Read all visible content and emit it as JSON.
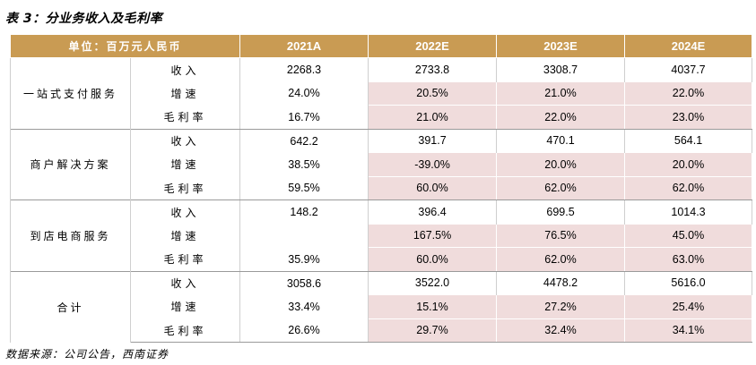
{
  "title": "表 3：分业务收入及毛利率",
  "header": {
    "unit": "单位：百万元人民币",
    "years": [
      "2021A",
      "2022E",
      "2023E",
      "2024E"
    ]
  },
  "segments": [
    {
      "name": "一站式支付服务",
      "rows": [
        {
          "metric": "收入",
          "values": [
            "2268.3",
            "2733.8",
            "3308.7",
            "4037.7"
          ]
        },
        {
          "metric": "增速",
          "values": [
            "24.0%",
            "20.5%",
            "21.0%",
            "22.0%"
          ]
        },
        {
          "metric": "毛利率",
          "values": [
            "16.7%",
            "21.0%",
            "22.0%",
            "23.0%"
          ]
        }
      ]
    },
    {
      "name": "商户解决方案",
      "rows": [
        {
          "metric": "收入",
          "values": [
            "642.2",
            "391.7",
            "470.1",
            "564.1"
          ]
        },
        {
          "metric": "增速",
          "values": [
            "38.5%",
            "-39.0%",
            "20.0%",
            "20.0%"
          ]
        },
        {
          "metric": "毛利率",
          "values": [
            "59.5%",
            "60.0%",
            "62.0%",
            "62.0%"
          ]
        }
      ]
    },
    {
      "name": "到店电商服务",
      "rows": [
        {
          "metric": "收入",
          "values": [
            "148.2",
            "396.4",
            "699.5",
            "1014.3"
          ]
        },
        {
          "metric": "增速",
          "values": [
            "",
            "167.5%",
            "76.5%",
            "45.0%"
          ]
        },
        {
          "metric": "毛利率",
          "values": [
            "35.9%",
            "60.0%",
            "62.0%",
            "63.0%"
          ]
        }
      ]
    },
    {
      "name": "合计",
      "rows": [
        {
          "metric": "收入",
          "values": [
            "3058.6",
            "3522.0",
            "4478.2",
            "5616.0"
          ]
        },
        {
          "metric": "增速",
          "values": [
            "33.4%",
            "15.1%",
            "27.2%",
            "25.4%"
          ]
        },
        {
          "metric": "毛利率",
          "values": [
            "26.6%",
            "29.7%",
            "32.4%",
            "34.1%"
          ]
        }
      ]
    }
  ],
  "source": "数据来源：公司公告，西南证券",
  "colors": {
    "header_bg": "#c99b53",
    "highlight_bg": "#f0dcdc"
  }
}
